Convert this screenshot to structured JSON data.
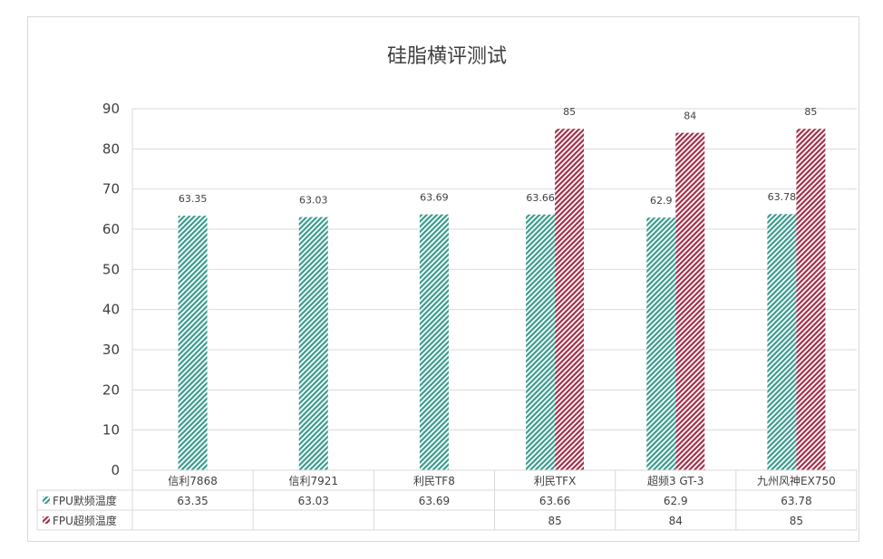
{
  "chart_data": {
    "type": "bar",
    "title": "硅脂横评测试",
    "categories": [
      "信利7868",
      "信利7921",
      "利民TF8",
      "利民TFX",
      "超频3 GT-3",
      "九州风神EX750"
    ],
    "series": [
      {
        "name": "FPU默频温度",
        "values": [
          63.35,
          63.03,
          63.69,
          63.66,
          62.9,
          63.78
        ],
        "color": "#3a9b8e"
      },
      {
        "name": "FPU超频温度",
        "values": [
          null,
          null,
          null,
          85,
          84,
          85
        ],
        "color": "#a3304a"
      }
    ],
    "data_labels": {
      "FPU默频温度": [
        "63.35",
        "63.03",
        "63.69",
        "63.66",
        "62.9",
        "63.78"
      ],
      "FPU超频温度": [
        "",
        "",
        "",
        "85",
        "84",
        "85"
      ]
    },
    "yticks": [
      "0",
      "10",
      "20",
      "30",
      "40",
      "50",
      "60",
      "70",
      "80",
      "90"
    ],
    "ylim": [
      0,
      90
    ],
    "grid": true,
    "legend": "data-table",
    "pattern": "diagonal-hatch"
  }
}
